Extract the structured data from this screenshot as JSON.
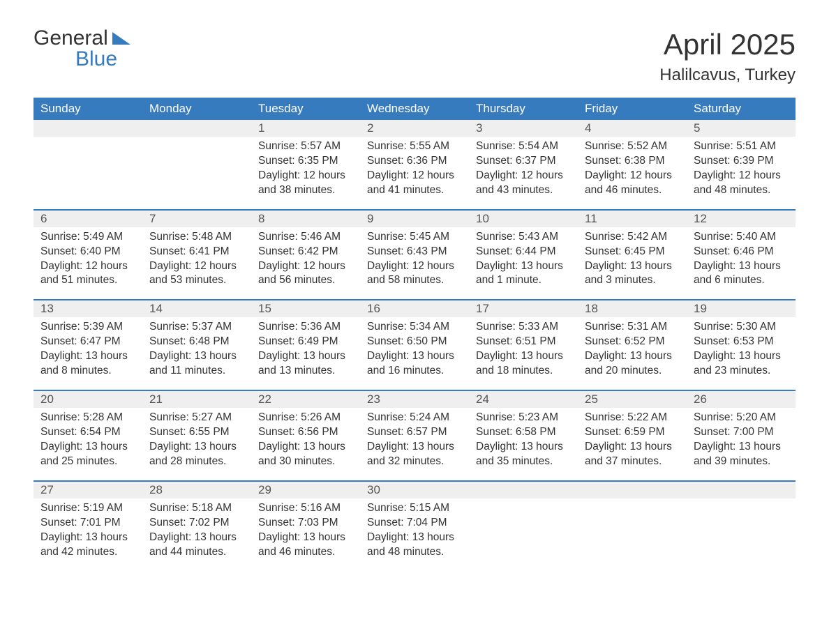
{
  "logo": {
    "line1": "General",
    "line2": "Blue"
  },
  "title": "April 2025",
  "location": "Halilcavus, Turkey",
  "colors": {
    "accent": "#377bbf",
    "header_text": "#ffffff",
    "daynum_bg": "#efefef",
    "text": "#333333",
    "background": "#ffffff"
  },
  "fonts": {
    "title_size": 42,
    "location_size": 24,
    "header_size": 17,
    "body_size": 15.5
  },
  "layout": {
    "columns": 7,
    "rows": 5,
    "week_start": "Sunday"
  },
  "weekdays": [
    "Sunday",
    "Monday",
    "Tuesday",
    "Wednesday",
    "Thursday",
    "Friday",
    "Saturday"
  ],
  "days": [
    null,
    null,
    {
      "n": "1",
      "sunrise": "Sunrise: 5:57 AM",
      "sunset": "Sunset: 6:35 PM",
      "daylight": "Daylight: 12 hours and 38 minutes."
    },
    {
      "n": "2",
      "sunrise": "Sunrise: 5:55 AM",
      "sunset": "Sunset: 6:36 PM",
      "daylight": "Daylight: 12 hours and 41 minutes."
    },
    {
      "n": "3",
      "sunrise": "Sunrise: 5:54 AM",
      "sunset": "Sunset: 6:37 PM",
      "daylight": "Daylight: 12 hours and 43 minutes."
    },
    {
      "n": "4",
      "sunrise": "Sunrise: 5:52 AM",
      "sunset": "Sunset: 6:38 PM",
      "daylight": "Daylight: 12 hours and 46 minutes."
    },
    {
      "n": "5",
      "sunrise": "Sunrise: 5:51 AM",
      "sunset": "Sunset: 6:39 PM",
      "daylight": "Daylight: 12 hours and 48 minutes."
    },
    {
      "n": "6",
      "sunrise": "Sunrise: 5:49 AM",
      "sunset": "Sunset: 6:40 PM",
      "daylight": "Daylight: 12 hours and 51 minutes."
    },
    {
      "n": "7",
      "sunrise": "Sunrise: 5:48 AM",
      "sunset": "Sunset: 6:41 PM",
      "daylight": "Daylight: 12 hours and 53 minutes."
    },
    {
      "n": "8",
      "sunrise": "Sunrise: 5:46 AM",
      "sunset": "Sunset: 6:42 PM",
      "daylight": "Daylight: 12 hours and 56 minutes."
    },
    {
      "n": "9",
      "sunrise": "Sunrise: 5:45 AM",
      "sunset": "Sunset: 6:43 PM",
      "daylight": "Daylight: 12 hours and 58 minutes."
    },
    {
      "n": "10",
      "sunrise": "Sunrise: 5:43 AM",
      "sunset": "Sunset: 6:44 PM",
      "daylight": "Daylight: 13 hours and 1 minute."
    },
    {
      "n": "11",
      "sunrise": "Sunrise: 5:42 AM",
      "sunset": "Sunset: 6:45 PM",
      "daylight": "Daylight: 13 hours and 3 minutes."
    },
    {
      "n": "12",
      "sunrise": "Sunrise: 5:40 AM",
      "sunset": "Sunset: 6:46 PM",
      "daylight": "Daylight: 13 hours and 6 minutes."
    },
    {
      "n": "13",
      "sunrise": "Sunrise: 5:39 AM",
      "sunset": "Sunset: 6:47 PM",
      "daylight": "Daylight: 13 hours and 8 minutes."
    },
    {
      "n": "14",
      "sunrise": "Sunrise: 5:37 AM",
      "sunset": "Sunset: 6:48 PM",
      "daylight": "Daylight: 13 hours and 11 minutes."
    },
    {
      "n": "15",
      "sunrise": "Sunrise: 5:36 AM",
      "sunset": "Sunset: 6:49 PM",
      "daylight": "Daylight: 13 hours and 13 minutes."
    },
    {
      "n": "16",
      "sunrise": "Sunrise: 5:34 AM",
      "sunset": "Sunset: 6:50 PM",
      "daylight": "Daylight: 13 hours and 16 minutes."
    },
    {
      "n": "17",
      "sunrise": "Sunrise: 5:33 AM",
      "sunset": "Sunset: 6:51 PM",
      "daylight": "Daylight: 13 hours and 18 minutes."
    },
    {
      "n": "18",
      "sunrise": "Sunrise: 5:31 AM",
      "sunset": "Sunset: 6:52 PM",
      "daylight": "Daylight: 13 hours and 20 minutes."
    },
    {
      "n": "19",
      "sunrise": "Sunrise: 5:30 AM",
      "sunset": "Sunset: 6:53 PM",
      "daylight": "Daylight: 13 hours and 23 minutes."
    },
    {
      "n": "20",
      "sunrise": "Sunrise: 5:28 AM",
      "sunset": "Sunset: 6:54 PM",
      "daylight": "Daylight: 13 hours and 25 minutes."
    },
    {
      "n": "21",
      "sunrise": "Sunrise: 5:27 AM",
      "sunset": "Sunset: 6:55 PM",
      "daylight": "Daylight: 13 hours and 28 minutes."
    },
    {
      "n": "22",
      "sunrise": "Sunrise: 5:26 AM",
      "sunset": "Sunset: 6:56 PM",
      "daylight": "Daylight: 13 hours and 30 minutes."
    },
    {
      "n": "23",
      "sunrise": "Sunrise: 5:24 AM",
      "sunset": "Sunset: 6:57 PM",
      "daylight": "Daylight: 13 hours and 32 minutes."
    },
    {
      "n": "24",
      "sunrise": "Sunrise: 5:23 AM",
      "sunset": "Sunset: 6:58 PM",
      "daylight": "Daylight: 13 hours and 35 minutes."
    },
    {
      "n": "25",
      "sunrise": "Sunrise: 5:22 AM",
      "sunset": "Sunset: 6:59 PM",
      "daylight": "Daylight: 13 hours and 37 minutes."
    },
    {
      "n": "26",
      "sunrise": "Sunrise: 5:20 AM",
      "sunset": "Sunset: 7:00 PM",
      "daylight": "Daylight: 13 hours and 39 minutes."
    },
    {
      "n": "27",
      "sunrise": "Sunrise: 5:19 AM",
      "sunset": "Sunset: 7:01 PM",
      "daylight": "Daylight: 13 hours and 42 minutes."
    },
    {
      "n": "28",
      "sunrise": "Sunrise: 5:18 AM",
      "sunset": "Sunset: 7:02 PM",
      "daylight": "Daylight: 13 hours and 44 minutes."
    },
    {
      "n": "29",
      "sunrise": "Sunrise: 5:16 AM",
      "sunset": "Sunset: 7:03 PM",
      "daylight": "Daylight: 13 hours and 46 minutes."
    },
    {
      "n": "30",
      "sunrise": "Sunrise: 5:15 AM",
      "sunset": "Sunset: 7:04 PM",
      "daylight": "Daylight: 13 hours and 48 minutes."
    },
    null,
    null,
    null
  ]
}
